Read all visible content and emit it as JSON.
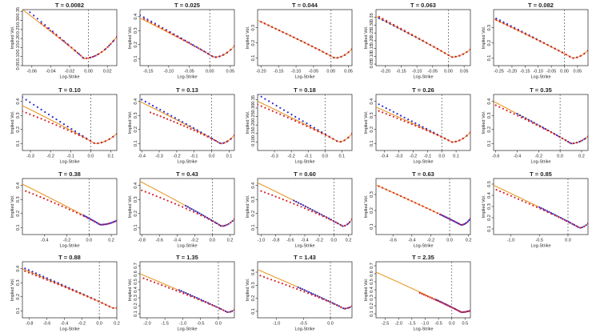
{
  "figure": {
    "xlabel": "Log-Strike",
    "ylabel": "Implied Vol."
  },
  "colors": {
    "blue": "#2a2ad6",
    "red": "#d8242b",
    "orange": "#e89a2a",
    "axis": "#222222",
    "money_line": "#555555"
  },
  "chart_data": [
    {
      "type": "scatter",
      "title": "T = 0.0082",
      "xlim": [
        -0.07,
        0.03
      ],
      "xticks": [
        -0.06,
        -0.04,
        -0.02,
        0.0,
        0.02
      ],
      "xticklabels": [
        "-0.06",
        "-0.04",
        "-0.02",
        "0.00",
        "0.02"
      ],
      "ylim": [
        0.05,
        0.36
      ],
      "yticks": [
        0.05,
        0.1,
        0.15,
        0.2,
        0.25,
        0.3,
        0.35
      ],
      "yticklabels": [
        "0.05",
        "0.10",
        "0.15",
        "0.20",
        "0.25",
        "0.30",
        "0.35"
      ],
      "left": -0.07,
      "right": 0.03,
      "min": [
        -0.005,
        0.09
      ],
      "lw": 0.27,
      "rw": 0.12,
      "blue_shift": 0.02,
      "red_shift": 0.005,
      "blue_x0": -0.07,
      "red_x0": -0.05
    },
    {
      "type": "scatter",
      "title": "T = 0.025",
      "xlim": [
        -0.17,
        0.06
      ],
      "xticks": [
        -0.15,
        -0.1,
        -0.05,
        0.0,
        0.05
      ],
      "xticklabels": [
        "-0.15",
        "-0.10",
        "-0.05",
        "0.00",
        "0.05"
      ],
      "ylim": [
        0.05,
        0.45
      ],
      "yticks": [
        0.1,
        0.2,
        0.3,
        0.4
      ],
      "yticklabels": [
        "0.1",
        "0.2",
        "0.3",
        "0.4"
      ],
      "left": -0.17,
      "right": 0.06,
      "min": [
        0.01,
        0.11
      ],
      "lw": 0.28,
      "rw": 0.08,
      "blue_shift": 0.02,
      "red_shift": 0.01,
      "blue_x0": -0.17,
      "red_x0": -0.16
    },
    {
      "type": "scatter",
      "title": "T = 0.044",
      "xlim": [
        -0.21,
        0.06
      ],
      "xticks": [
        -0.2,
        -0.15,
        -0.1,
        -0.05,
        0.0,
        0.05
      ],
      "xticklabels": [
        "-0.20",
        "-0.15",
        "-0.10",
        "-0.05",
        "0.00",
        "0.05"
      ],
      "ylim": [
        0.05,
        0.42
      ],
      "yticks": [
        0.1,
        0.2,
        0.3
      ],
      "yticklabels": [
        "0.1",
        "0.2",
        "0.3"
      ],
      "left": -0.21,
      "right": 0.06,
      "min": [
        0.01,
        0.1
      ],
      "lw": 0.25,
      "rw": 0.06,
      "blue_shift": 0.0,
      "red_shift": 0.0,
      "blue_x0": -0.2,
      "red_x0": -0.2
    },
    {
      "type": "scatter",
      "title": "T = 0.063",
      "xlim": [
        -0.23,
        0.07
      ],
      "xticks": [
        -0.2,
        -0.15,
        -0.1,
        -0.05,
        0.0,
        0.05
      ],
      "xticklabels": [
        "-0.20",
        "-0.15",
        "-0.10",
        "-0.05",
        "0.00",
        "0.05"
      ],
      "ylim": [
        0.04,
        0.4
      ],
      "yticks": [
        0.05,
        0.1,
        0.15,
        0.2,
        0.25,
        0.3,
        0.35
      ],
      "yticklabels": [
        "0.05",
        "0.10",
        "0.15",
        "0.20",
        "0.25",
        "0.30",
        "0.35"
      ],
      "left": -0.23,
      "right": 0.07,
      "min": [
        0.01,
        0.095
      ],
      "lw": 0.26,
      "rw": 0.05,
      "blue_shift": 0.0,
      "red_shift": 0.01,
      "blue_x0": -0.22,
      "red_x0": -0.22
    },
    {
      "type": "scatter",
      "title": "T = 0.082",
      "xlim": [
        -0.27,
        0.09
      ],
      "xticks": [
        -0.25,
        -0.2,
        -0.15,
        -0.1,
        -0.05,
        0.0,
        0.05
      ],
      "xticklabels": [
        "-0.25",
        "-0.20",
        "-0.15",
        "-0.10",
        "-0.05",
        "0.00",
        "0.05"
      ],
      "ylim": [
        0.05,
        0.42
      ],
      "yticks": [
        0.1,
        0.2,
        0.3
      ],
      "yticklabels": [
        "0.1",
        "0.2",
        "0.3"
      ],
      "left": -0.27,
      "right": 0.09,
      "min": [
        0.03,
        0.1
      ],
      "lw": 0.26,
      "rw": 0.05,
      "blue_shift": 0.01,
      "red_shift": 0.0,
      "blue_x0": -0.26,
      "red_x0": -0.26
    },
    {
      "type": "scatter",
      "title": "T = 0.10",
      "xlim": [
        -0.34,
        0.13
      ],
      "xticks": [
        -0.3,
        -0.2,
        -0.1,
        0.0,
        0.1
      ],
      "xticklabels": [
        "-0.3",
        "-0.2",
        "-0.1",
        "0.0",
        "0.1"
      ],
      "ylim": [
        0.05,
        0.45
      ],
      "yticks": [
        0.1,
        0.2,
        0.3,
        0.4
      ],
      "yticklabels": [
        "0.1",
        "0.2",
        "0.3",
        "0.4"
      ],
      "left": -0.34,
      "right": 0.13,
      "min": [
        0.02,
        0.1
      ],
      "lw": 0.27,
      "rw": 0.07,
      "blue_shift": 0.06,
      "red_shift": -0.04,
      "blue_x0": -0.34,
      "red_x0": -0.34
    },
    {
      "type": "scatter",
      "title": "T = 0.13",
      "xlim": [
        -0.41,
        0.13
      ],
      "xticks": [
        -0.4,
        -0.3,
        -0.2,
        -0.1,
        0.0,
        0.1
      ],
      "xticklabels": [
        "-0.4",
        "-0.3",
        "-0.2",
        "-0.1",
        "0.0",
        "0.1"
      ],
      "ylim": [
        0.05,
        0.45
      ],
      "yticks": [
        0.1,
        0.2,
        0.3,
        0.4
      ],
      "yticklabels": [
        "0.1",
        "0.2",
        "0.3",
        "0.4"
      ],
      "left": -0.41,
      "right": 0.13,
      "min": [
        0.05,
        0.1
      ],
      "lw": 0.3,
      "rw": 0.06,
      "blue_shift": 0.02,
      "red_shift": -0.05,
      "blue_x0": -0.4,
      "red_x0": -0.35
    },
    {
      "type": "scatter",
      "title": "T = 0.18",
      "xlim": [
        -0.4,
        0.16
      ],
      "xticks": [
        -0.3,
        -0.2,
        -0.1,
        0.0,
        0.1
      ],
      "xticklabels": [
        "-0.3",
        "-0.2",
        "-0.1",
        "0.0",
        "0.1"
      ],
      "ylim": [
        0.05,
        0.38
      ],
      "yticks": [
        0.1,
        0.15,
        0.2,
        0.25,
        0.3,
        0.35
      ],
      "yticklabels": [
        "0.10",
        "0.15",
        "0.20",
        "0.25",
        "0.30",
        "0.35"
      ],
      "left": -0.4,
      "right": 0.16,
      "min": [
        0.08,
        0.1
      ],
      "lw": 0.24,
      "rw": 0.05,
      "blue_shift": 0.04,
      "red_shift": -0.02,
      "blue_x0": -0.4,
      "red_x0": -0.4
    },
    {
      "type": "scatter",
      "title": "T = 0.26",
      "xlim": [
        -0.46,
        0.2
      ],
      "xticks": [
        -0.4,
        -0.3,
        -0.2,
        -0.1,
        0.0,
        0.1
      ],
      "xticklabels": [
        "-0.4",
        "-0.3",
        "-0.2",
        "-0.1",
        "0.0",
        "0.1"
      ],
      "ylim": [
        0.05,
        0.45
      ],
      "yticks": [
        0.1,
        0.2,
        0.3,
        0.4
      ],
      "yticklabels": [
        "0.1",
        "0.2",
        "0.3",
        "0.4"
      ],
      "left": -0.46,
      "right": 0.2,
      "min": [
        0.07,
        0.11
      ],
      "lw": 0.25,
      "rw": 0.07,
      "blue_shift": 0.03,
      "red_shift": -0.02,
      "blue_x0": -0.44,
      "red_x0": -0.44
    },
    {
      "type": "scatter",
      "title": "T = 0.35",
      "xlim": [
        -0.62,
        0.26
      ],
      "xticks": [
        -0.6,
        -0.4,
        -0.2,
        0.0,
        0.2
      ],
      "xticklabels": [
        "-0.6",
        "-0.4",
        "-0.2",
        "0.0",
        "0.2"
      ],
      "ylim": [
        0.05,
        0.45
      ],
      "yticks": [
        0.1,
        0.2,
        0.3,
        0.4
      ],
      "yticklabels": [
        "0.1",
        "0.2",
        "0.3",
        "0.4"
      ],
      "left": -0.62,
      "right": 0.26,
      "min": [
        0.1,
        0.1
      ],
      "lw": 0.3,
      "rw": 0.05,
      "blue_shift": 0.0,
      "red_shift": -0.02,
      "blue_x0": -0.4,
      "red_x0": -0.6
    },
    {
      "type": "scatter",
      "title": "T = 0.38",
      "xlim": [
        -0.6,
        0.25
      ],
      "xticks": [
        -0.4,
        -0.2,
        0.0,
        0.2
      ],
      "xticklabels": [
        "-0.4",
        "-0.2",
        "0.0",
        "0.2"
      ],
      "ylim": [
        0.05,
        0.45
      ],
      "yticks": [
        0.1,
        0.2,
        0.3,
        0.4
      ],
      "yticklabels": [
        "0.1",
        "0.2",
        "0.3",
        "0.4"
      ],
      "left": -0.6,
      "right": 0.25,
      "min": [
        0.1,
        0.12
      ],
      "lw": 0.29,
      "rw": 0.03,
      "blue_shift": 0.0,
      "red_shift": -0.04,
      "blue_x0": -0.05,
      "red_x0": -0.57
    },
    {
      "type": "scatter",
      "title": "T = 0.43",
      "xlim": [
        -0.82,
        0.25
      ],
      "xticks": [
        -0.8,
        -0.6,
        -0.4,
        -0.2,
        0.0,
        0.2
      ],
      "xticklabels": [
        "-0.8",
        "-0.6",
        "-0.4",
        "-0.2",
        "0.0",
        "0.2"
      ],
      "ylim": [
        0.05,
        0.45
      ],
      "yticks": [
        0.1,
        0.2,
        0.3,
        0.4
      ],
      "yticklabels": [
        "0.1",
        "0.2",
        "0.3",
        "0.4"
      ],
      "left": -0.82,
      "right": 0.25,
      "min": [
        0.1,
        0.11
      ],
      "lw": 0.32,
      "rw": 0.05,
      "blue_shift": 0.0,
      "red_shift": -0.06,
      "blue_x0": -0.3,
      "red_x0": -0.8
    },
    {
      "type": "scatter",
      "title": "T = 0.60",
      "xlim": [
        -1.05,
        0.25
      ],
      "xticks": [
        -1.0,
        -0.8,
        -0.6,
        -0.4,
        -0.2,
        0.0,
        0.2
      ],
      "xticklabels": [
        "-1.0",
        "-0.8",
        "-0.6",
        "-0.4",
        "-0.2",
        "0.0",
        "0.2"
      ],
      "ylim": [
        0.05,
        0.45
      ],
      "yticks": [
        0.1,
        0.2,
        0.3,
        0.4
      ],
      "yticklabels": [
        "0.1",
        "0.2",
        "0.3",
        "0.4"
      ],
      "left": -1.05,
      "right": 0.25,
      "min": [
        0.12,
        0.11
      ],
      "lw": 0.31,
      "rw": 0.05,
      "blue_shift": 0.0,
      "red_shift": -0.05,
      "blue_x0": -0.55,
      "red_x0": -1.0
    },
    {
      "type": "scatter",
      "title": "T = 0.63",
      "xlim": [
        -0.78,
        0.22
      ],
      "xticks": [
        -0.6,
        -0.4,
        -0.2,
        0.0,
        0.2
      ],
      "xticklabels": [
        "-0.6",
        "-0.4",
        "-0.2",
        "0.0",
        "0.2"
      ],
      "ylim": [
        0.05,
        0.4
      ],
      "yticks": [
        0.1,
        0.2,
        0.3
      ],
      "yticklabels": [
        "0.1",
        "0.2",
        "0.3"
      ],
      "left": -0.78,
      "right": 0.22,
      "min": [
        0.12,
        0.11
      ],
      "lw": 0.25,
      "rw": 0.04,
      "blue_shift": 0.0,
      "red_shift": 0.0,
      "blue_x0": -0.1,
      "red_x0": -0.75
    },
    {
      "type": "scatter",
      "title": "T = 0.85",
      "xlim": [
        -1.3,
        0.35
      ],
      "xticks": [
        -1.0,
        -0.5,
        0.0
      ],
      "xticklabels": [
        "-1.0",
        "-0.5",
        "0.0"
      ],
      "ylim": [
        0.05,
        0.55
      ],
      "yticks": [
        0.1,
        0.2,
        0.3,
        0.4,
        0.5
      ],
      "yticklabels": [
        "0.1",
        "0.2",
        "0.3",
        "0.4",
        "0.5"
      ],
      "left": -1.3,
      "right": 0.35,
      "min": [
        0.2,
        0.11
      ],
      "lw": 0.38,
      "rw": 0.04,
      "blue_shift": 0.0,
      "red_shift": -0.03,
      "blue_x0": -0.5,
      "red_x0": -1.25
    },
    {
      "type": "scatter",
      "title": "T = 0.88",
      "xlim": [
        -0.88,
        0.2
      ],
      "xticks": [
        -0.8,
        -0.6,
        -0.4,
        -0.2,
        0.0,
        0.2
      ],
      "xticklabels": [
        "-0.8",
        "-0.6",
        "-0.4",
        "-0.2",
        "0.0",
        "0.2"
      ],
      "ylim": [
        0.05,
        0.45
      ],
      "yticks": [
        0.1,
        0.2,
        0.3,
        0.4
      ],
      "yticklabels": [
        "0.1",
        "0.2",
        "0.3",
        "0.4"
      ],
      "left": -0.88,
      "right": 0.2,
      "min": [
        0.15,
        0.12
      ],
      "lw": 0.28,
      "rw": 0.0,
      "blue_shift": 0.01,
      "red_shift": -0.01,
      "blue_x0": -0.85,
      "red_x0": -0.85
    },
    {
      "type": "scatter",
      "title": "T = 1.35",
      "xlim": [
        -2.2,
        0.45
      ],
      "xticks": [
        -2.0,
        -1.5,
        -1.0,
        -0.5,
        0.0
      ],
      "xticklabels": [
        "-2.0",
        "-1.5",
        "-1.0",
        "-0.5",
        "0.0"
      ],
      "ylim": [
        0.05,
        0.75
      ],
      "yticks": [
        0.1,
        0.2,
        0.3,
        0.4,
        0.5,
        0.6,
        0.7
      ],
      "yticklabels": [
        "0.1",
        "0.2",
        "0.3",
        "0.4",
        "0.5",
        "0.6",
        "0.7"
      ],
      "left": -2.2,
      "right": 0.45,
      "min": [
        0.25,
        0.12
      ],
      "lw": 0.48,
      "rw": 0.03,
      "blue_shift": 0.01,
      "red_shift": -0.04,
      "blue_x0": -1.1,
      "red_x0": -2.1
    },
    {
      "type": "scatter",
      "title": "T = 1.43",
      "xlim": [
        -1.35,
        0.4
      ],
      "xticks": [
        -1.0,
        -0.5,
        0.0
      ],
      "xticklabels": [
        "-1.0",
        "-0.5",
        "0.0"
      ],
      "ylim": [
        0.05,
        0.48
      ],
      "yticks": [
        0.1,
        0.2,
        0.3,
        0.4
      ],
      "yticklabels": [
        "0.1",
        "0.2",
        "0.3",
        "0.4"
      ],
      "left": -1.35,
      "right": 0.4,
      "min": [
        0.25,
        0.12
      ],
      "lw": 0.3,
      "rw": 0.02,
      "blue_shift": 0.0,
      "red_shift": -0.04,
      "blue_x0": -0.6,
      "red_x0": -1.3
    },
    {
      "type": "scatter",
      "title": "T = 2.35",
      "xlim": [
        -2.85,
        0.7
      ],
      "xticks": [
        -2.5,
        -2.0,
        -1.5,
        -1.0,
        -0.5,
        0.0,
        0.5
      ],
      "xticklabels": [
        "-2.5",
        "-2.0",
        "-1.5",
        "-1.0",
        "-0.5",
        "0.0",
        "0.5"
      ],
      "ylim": [
        0.05,
        0.75
      ],
      "yticks": [
        0.1,
        0.2,
        0.3,
        0.4,
        0.5,
        0.6,
        0.7
      ],
      "yticklabels": [
        "0.1",
        "0.2",
        "0.3",
        "0.4",
        "0.5",
        "0.6",
        "0.7"
      ],
      "left": -2.85,
      "right": 0.7,
      "min": [
        0.35,
        0.12
      ],
      "lw": 0.5,
      "rw": 0.02,
      "blue_shift": 0.0,
      "red_shift": -0.03,
      "blue_x0": -0.6,
      "red_x0": -1.2
    }
  ]
}
